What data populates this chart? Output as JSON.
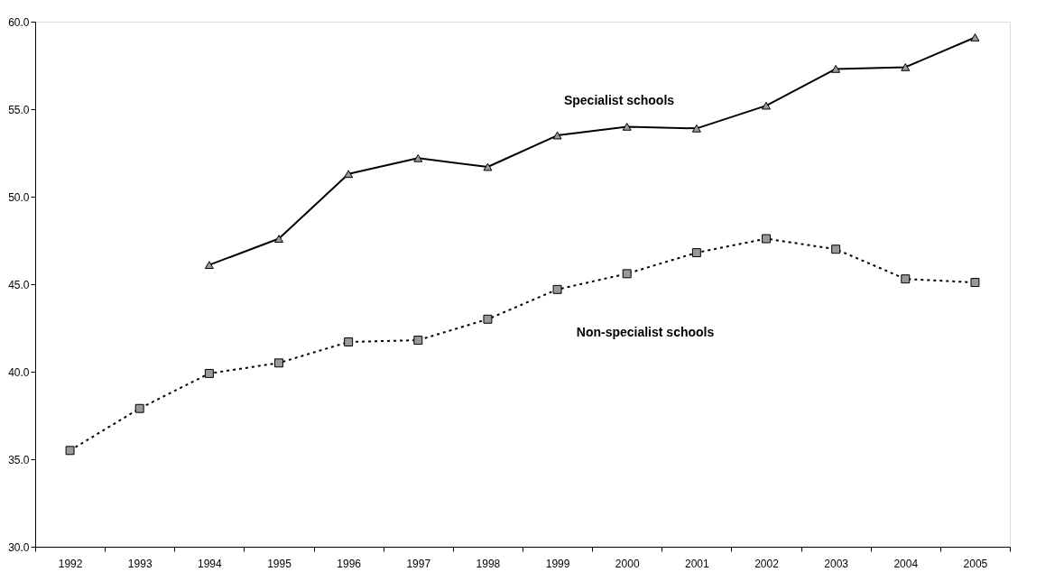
{
  "chart_data": {
    "type": "line",
    "categories": [
      "1992",
      "1993",
      "1994",
      "1995",
      "1996",
      "1997",
      "1998",
      "1999",
      "2000",
      "2001",
      "2002",
      "2003",
      "2004",
      "2005"
    ],
    "series": [
      {
        "name": "Specialist schools",
        "color": "#000000",
        "marker": "triangle",
        "line_style": "solid",
        "values": [
          null,
          null,
          46.1,
          47.6,
          51.3,
          52.2,
          51.7,
          53.5,
          54.0,
          53.9,
          55.2,
          57.3,
          57.4,
          59.1
        ]
      },
      {
        "name": "Non-specialist schools",
        "color": "#000000",
        "marker": "square",
        "line_style": "dotted",
        "values": [
          35.5,
          37.9,
          39.9,
          40.5,
          41.7,
          41.8,
          43.0,
          44.7,
          45.6,
          46.8,
          47.6,
          47.0,
          45.3,
          45.1
        ]
      }
    ],
    "ylim": [
      30,
      60
    ],
    "yticks": [
      {
        "value": 30,
        "label": "30.0"
      },
      {
        "value": 35,
        "label": "35.0"
      },
      {
        "value": 40,
        "label": "40.0"
      },
      {
        "value": 45,
        "label": "45.0"
      },
      {
        "value": 50,
        "label": "50.0"
      },
      {
        "value": 55,
        "label": "55.0"
      },
      {
        "value": 60,
        "label": "60.0"
      }
    ],
    "grid": false
  }
}
